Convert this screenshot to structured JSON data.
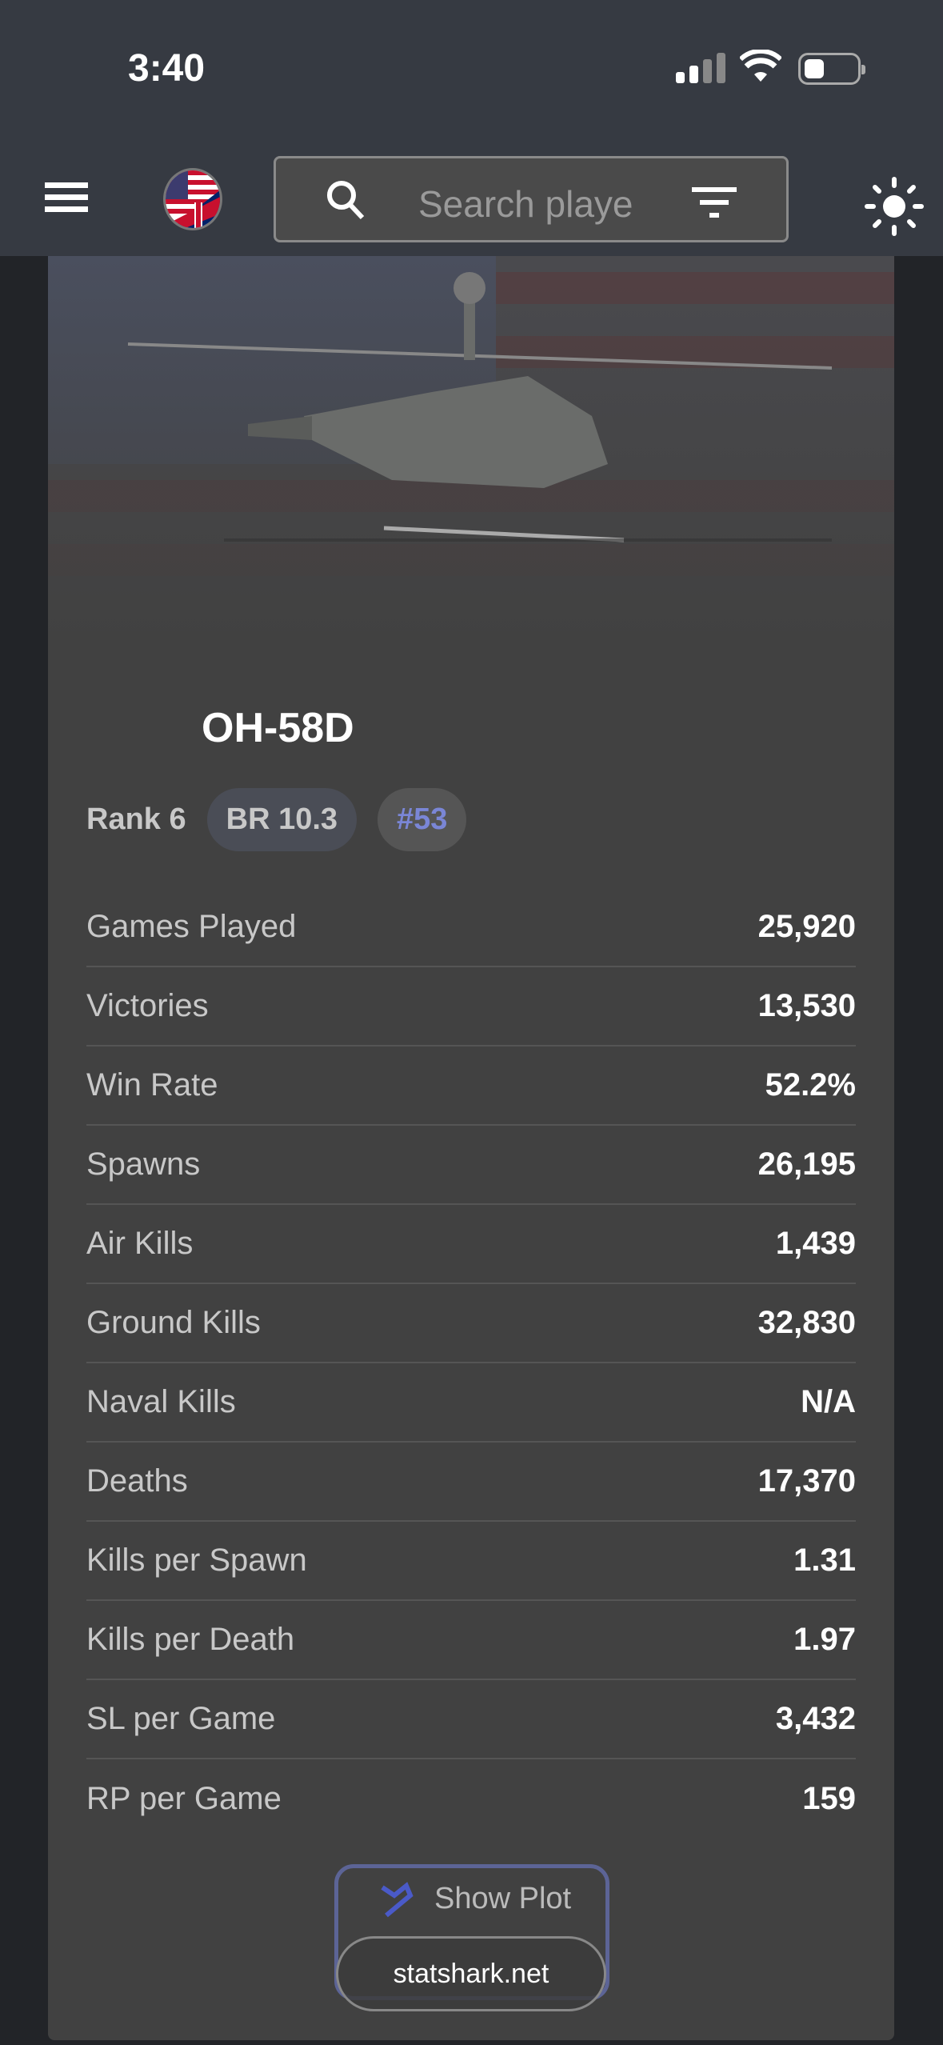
{
  "status_bar": {
    "time": "3:40"
  },
  "nav": {
    "search_placeholder": "Search playe",
    "icons": [
      "menu-icon",
      "country-flag-usa-uk",
      "search-icon",
      "filter-icon",
      "sun-icon"
    ]
  },
  "vehicle": {
    "name": "OH-58D",
    "rank": "Rank 6",
    "br": "BR 10.3",
    "position": "#53",
    "stats": [
      {
        "label": "Games Played",
        "value": "25,920"
      },
      {
        "label": "Victories",
        "value": "13,530"
      },
      {
        "label": "Win Rate",
        "value": "52.2%"
      },
      {
        "label": "Spawns",
        "value": "26,195"
      },
      {
        "label": "Air Kills",
        "value": "1,439"
      },
      {
        "label": "Ground Kills",
        "value": "32,830"
      },
      {
        "label": "Naval Kills",
        "value": "N/A"
      },
      {
        "label": "Deaths",
        "value": "17,370"
      },
      {
        "label": "Kills per Spawn",
        "value": "1.31"
      },
      {
        "label": "Kills per Death",
        "value": "1.97"
      },
      {
        "label": "SL per Game",
        "value": "3,432"
      },
      {
        "label": "RP per Game",
        "value": "159"
      }
    ],
    "show_plot_label": "Show Plot"
  },
  "browser": {
    "url": "statshark.net"
  },
  "colors": {
    "accent": "#7a86d6",
    "header": "#363a42",
    "card": "#414141"
  }
}
